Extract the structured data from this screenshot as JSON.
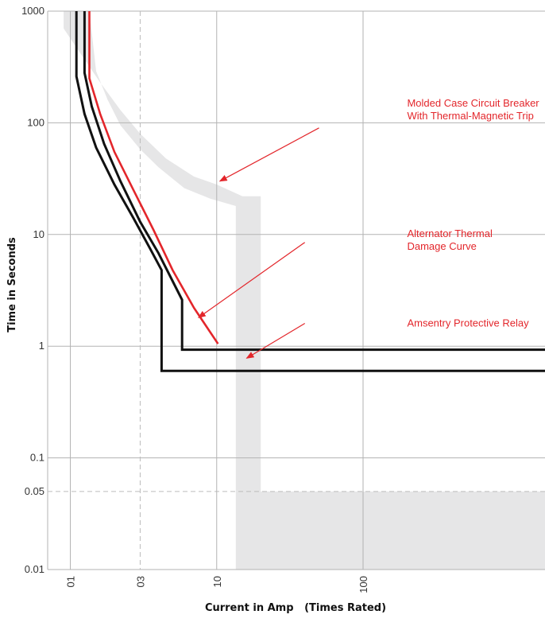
{
  "chart_data": {
    "type": "line",
    "xlabel": "Current in Amp   (Times Rated)",
    "ylabel": "Time in Seconds",
    "x_scale": "log",
    "y_scale": "log",
    "xlim": [
      0.7,
      1750
    ],
    "ylim": [
      0.01,
      1000
    ],
    "grid": true,
    "x_ticks": [
      {
        "value": 1,
        "label": "01"
      },
      {
        "value": 3,
        "label": "03"
      },
      {
        "value": 10,
        "label": "10"
      },
      {
        "value": 100,
        "label": "100"
      }
    ],
    "y_ticks": [
      {
        "value": 1000,
        "label": "1000"
      },
      {
        "value": 100,
        "label": "100"
      },
      {
        "value": 10,
        "label": "10"
      },
      {
        "value": 1,
        "label": "1"
      },
      {
        "value": 0.1,
        "label": "0.1"
      },
      {
        "value": 0.05,
        "label": "0.05"
      },
      {
        "value": 0.01,
        "label": "0.01"
      }
    ],
    "dashed_x": [
      3
    ],
    "dashed_y": [
      0.05
    ],
    "colors": {
      "relay": "#111111",
      "damage": "#e3262b",
      "breaker_band": "#e6e6e7",
      "grid": "#b3b3b3",
      "dashed": "#bcbcbc",
      "annotation": "#e3262b"
    },
    "series": [
      {
        "key": "breaker_band",
        "style": "band",
        "points": [
          [
            0.9,
            700
          ],
          [
            1.2,
            400
          ],
          [
            1.6,
            230
          ],
          [
            2.2,
            130
          ],
          [
            3,
            80
          ],
          [
            4.5,
            48
          ],
          [
            7,
            33
          ],
          [
            10,
            28
          ],
          [
            15,
            22
          ],
          [
            20,
            22
          ],
          [
            20,
            0.05
          ],
          [
            1750,
            0.05
          ],
          [
            1750,
            0.01
          ],
          [
            13.5,
            0.01
          ],
          [
            13.5,
            18
          ],
          [
            9,
            21
          ],
          [
            6,
            26
          ],
          [
            4,
            40
          ],
          [
            3,
            58
          ],
          [
            2.2,
            95
          ],
          [
            1.8,
            160
          ],
          [
            1.5,
            290
          ],
          [
            1.35,
            1000
          ],
          [
            0.9,
            1000
          ]
        ]
      },
      {
        "key": "relay_outer",
        "style": "line",
        "points": [
          [
            1.1,
            1000
          ],
          [
            1.1,
            260
          ],
          [
            1.25,
            120
          ],
          [
            1.5,
            60
          ],
          [
            2,
            28
          ],
          [
            2.7,
            14
          ],
          [
            3.5,
            7.5
          ],
          [
            4.2,
            4.8
          ],
          [
            4.2,
            0.6
          ],
          [
            1750,
            0.6
          ]
        ]
      },
      {
        "key": "relay_inner",
        "style": "line",
        "points": [
          [
            1.25,
            1000
          ],
          [
            1.25,
            280
          ],
          [
            1.4,
            140
          ],
          [
            1.7,
            65
          ],
          [
            2.2,
            30
          ],
          [
            3,
            13
          ],
          [
            4,
            6.8
          ],
          [
            5.8,
            2.6
          ],
          [
            5.8,
            0.93
          ],
          [
            1750,
            0.93
          ]
        ]
      },
      {
        "key": "damage_curve",
        "style": "line",
        "points": [
          [
            1.35,
            1000
          ],
          [
            1.35,
            250
          ],
          [
            1.6,
            120
          ],
          [
            2,
            55
          ],
          [
            2.7,
            25
          ],
          [
            3.7,
            11
          ],
          [
            5,
            4.8
          ],
          [
            7,
            2.2
          ],
          [
            10.2,
            1.05
          ]
        ]
      }
    ],
    "annotations": [
      {
        "key": "breaker",
        "lines": [
          "Molded Case Circuit Breaker",
          "With Thermal-Magnetic Trip"
        ],
        "text_at": [
          200,
          140
        ],
        "arrow_to": [
          10.5,
          30
        ],
        "arrow_from": [
          50,
          90
        ]
      },
      {
        "key": "damage",
        "lines": [
          "Alternator Thermal",
          "Damage Curve"
        ],
        "text_at": [
          200,
          9.5
        ],
        "arrow_to": [
          7.5,
          1.8
        ],
        "arrow_from": [
          40,
          8.5
        ]
      },
      {
        "key": "relay",
        "lines": [
          "Amsentry Protective Relay"
        ],
        "text_at": [
          200,
          1.5
        ],
        "arrow_to": [
          16,
          0.78
        ],
        "arrow_from": [
          40,
          1.6
        ]
      }
    ]
  }
}
